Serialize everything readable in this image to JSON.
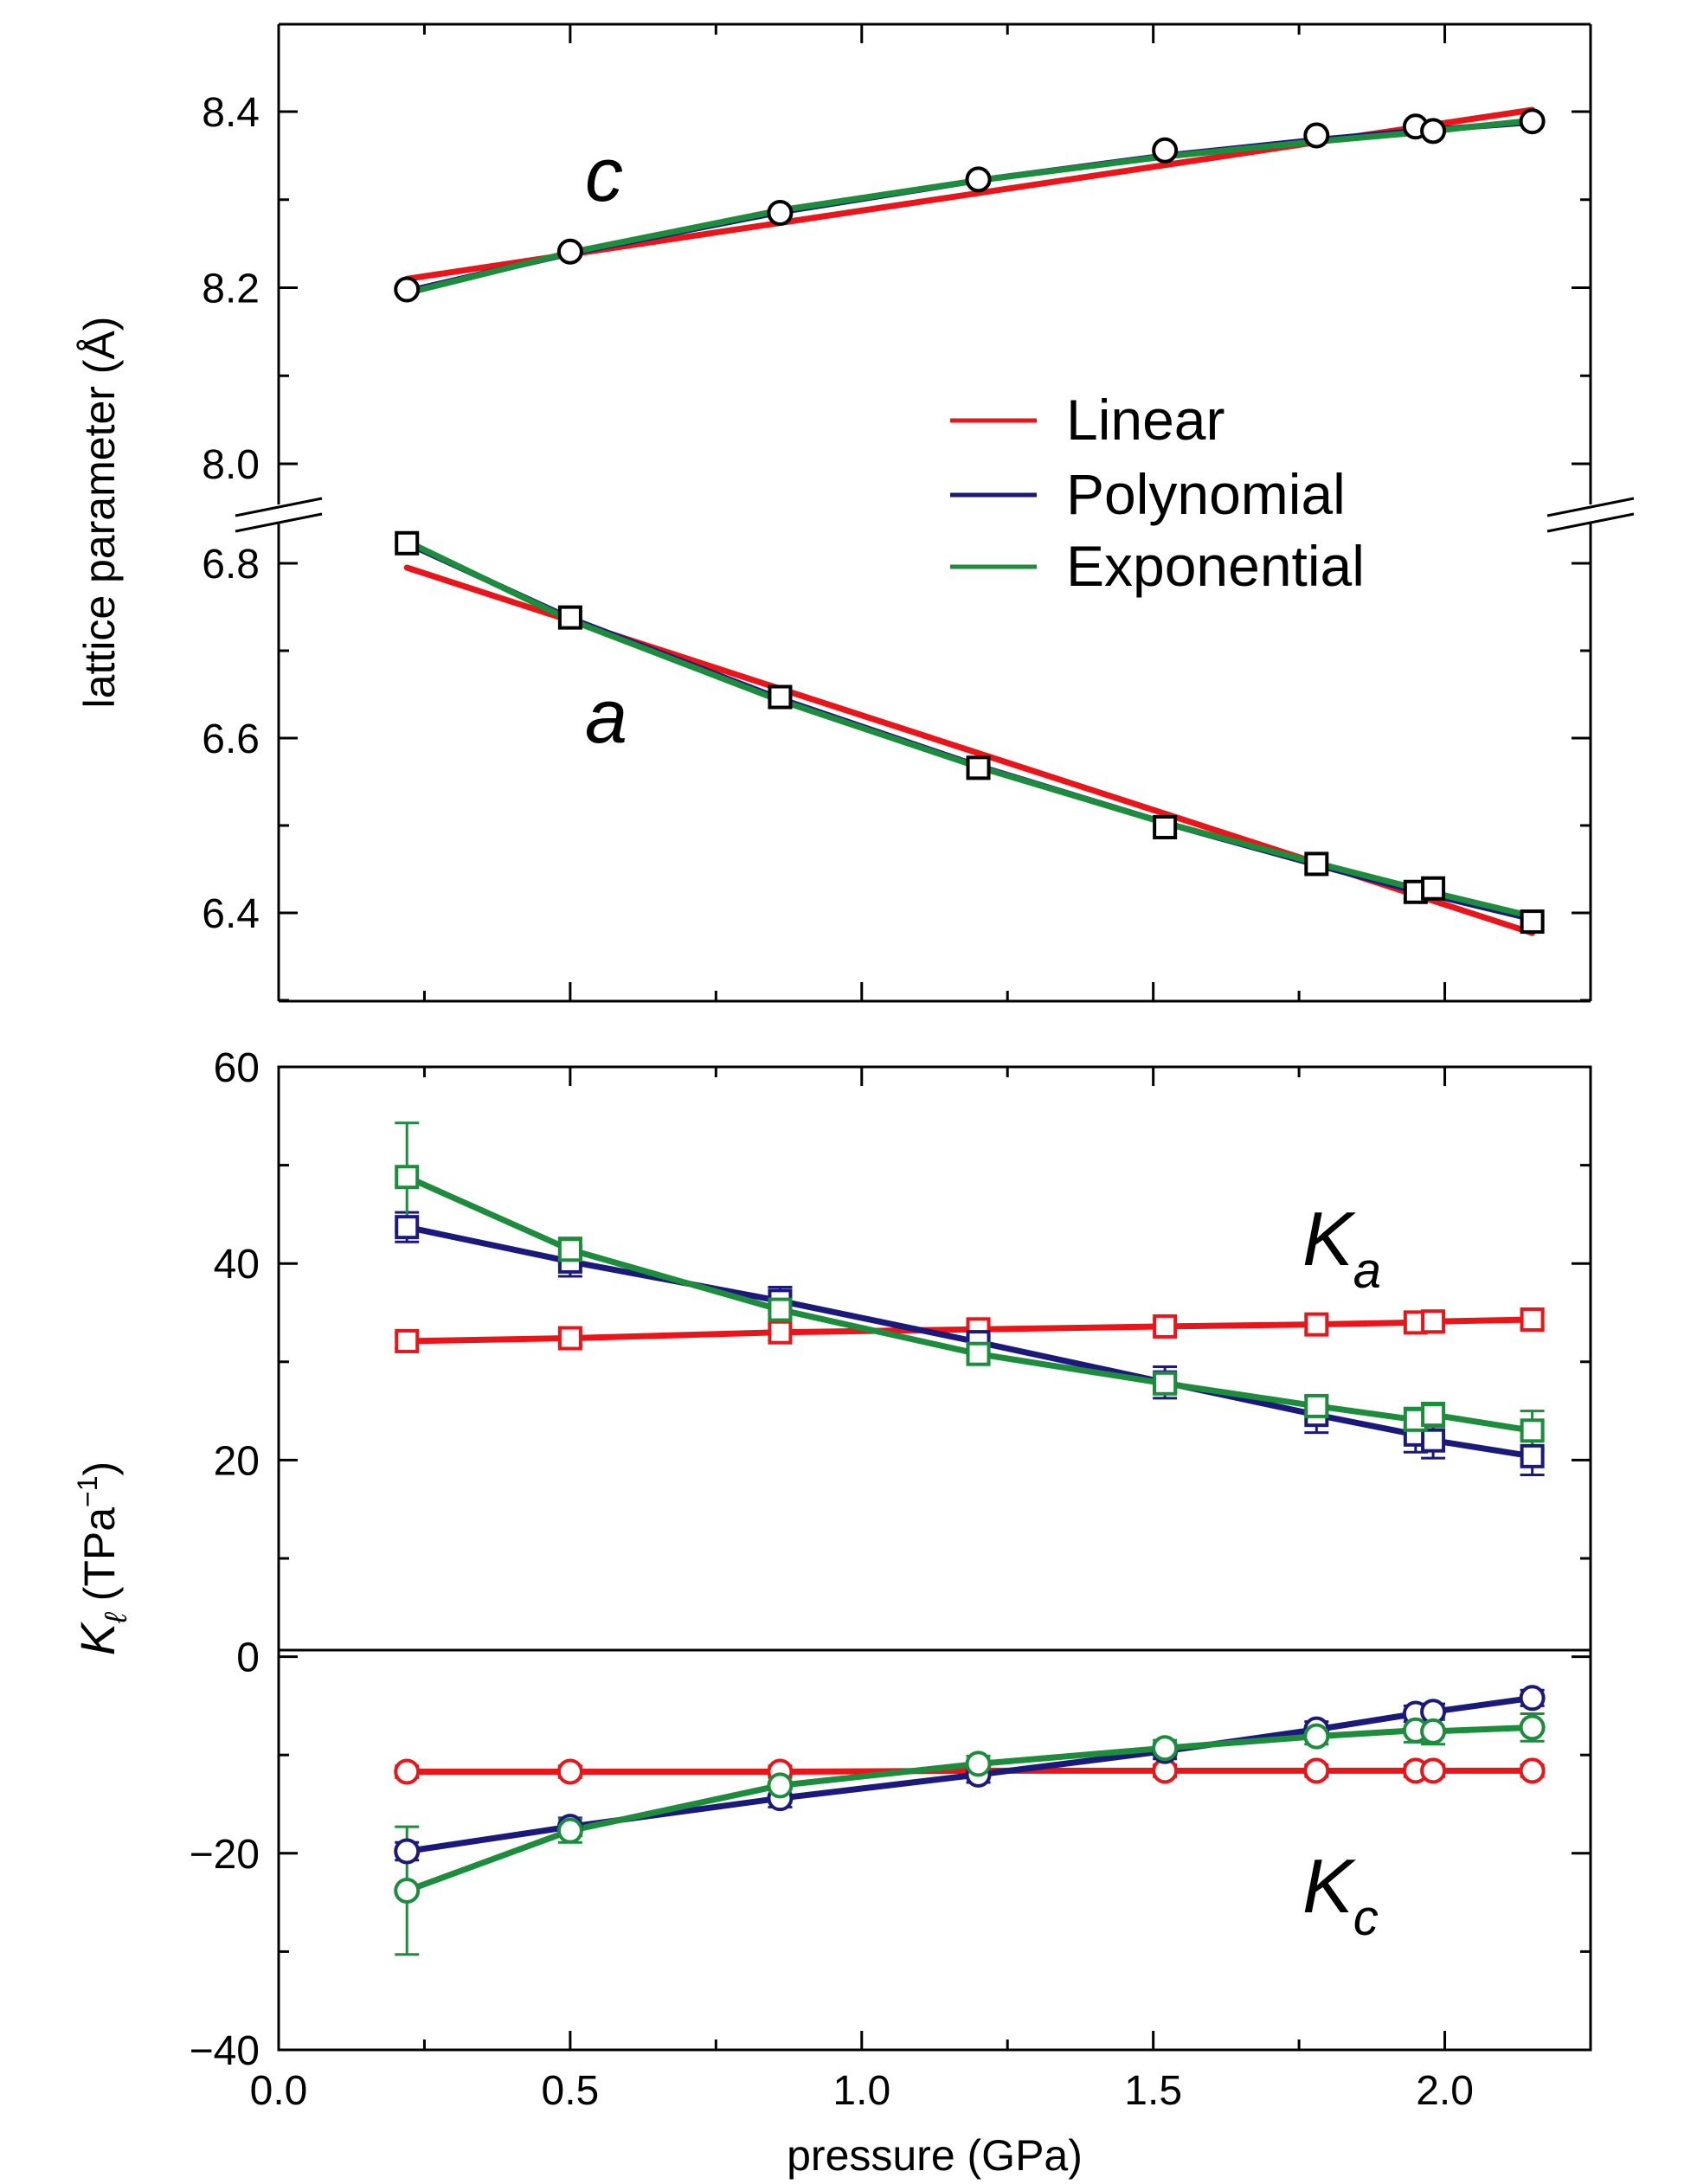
{
  "colors": {
    "linear": "#e8161b",
    "polynomial": "#1b1a7a",
    "exponential": "#1d8c3c",
    "frame": "#000000"
  },
  "chart_data": [
    {
      "type": "line",
      "panel": "top",
      "xlabel": "",
      "ylabel": "lattice parameter (Å)",
      "xlim": [
        0.0,
        2.25
      ],
      "ylim_upper_segment": [
        8.0,
        8.5
      ],
      "ylim_lower_segment": [
        6.3,
        6.82
      ],
      "axis_break": "between 6.82 and 8.0",
      "yticks_upper": [
        "8.0",
        "8.2",
        "8.4"
      ],
      "yticks_lower": [
        "6.4",
        "6.6",
        "6.8"
      ],
      "pressure": [
        0.22,
        0.5,
        0.86,
        1.2,
        1.52,
        1.78,
        1.95,
        1.98,
        2.15
      ],
      "series": [
        {
          "name": "c",
          "marker": "circle",
          "values": [
            8.198,
            8.241,
            8.285,
            8.323,
            8.356,
            8.373,
            8.383,
            8.378,
            8.389
          ]
        },
        {
          "name": "a",
          "marker": "square",
          "values": [
            6.823,
            6.738,
            6.647,
            6.566,
            6.498,
            6.456,
            6.424,
            6.428,
            6.39
          ]
        }
      ],
      "fits": {
        "c": {
          "Linear": [
            [
              0.22,
              8.21
            ],
            [
              2.15,
              8.402
            ]
          ],
          "Polynomial": [
            [
              0.22,
              8.196
            ],
            [
              0.5,
              8.239
            ],
            [
              0.86,
              8.286
            ],
            [
              1.2,
              8.322
            ],
            [
              1.52,
              8.35
            ],
            [
              1.78,
              8.368
            ],
            [
              1.95,
              8.378
            ],
            [
              2.15,
              8.388
            ]
          ],
          "Exponential": [
            [
              0.22,
              8.194
            ],
            [
              0.5,
              8.24
            ],
            [
              0.86,
              8.288
            ],
            [
              1.2,
              8.322
            ],
            [
              1.52,
              8.349
            ],
            [
              1.78,
              8.366
            ],
            [
              1.95,
              8.376
            ],
            [
              2.15,
              8.39
            ]
          ]
        },
        "a": {
          "Linear": [
            [
              0.22,
              6.795
            ],
            [
              2.15,
              6.377
            ]
          ],
          "Polynomial": [
            [
              0.22,
              6.823
            ],
            [
              0.5,
              6.737
            ],
            [
              0.86,
              6.645
            ],
            [
              1.2,
              6.568
            ],
            [
              1.52,
              6.503
            ],
            [
              1.78,
              6.455
            ],
            [
              1.95,
              6.425
            ],
            [
              2.15,
              6.393
            ]
          ],
          "Exponential": [
            [
              0.22,
              6.825
            ],
            [
              0.5,
              6.735
            ],
            [
              0.86,
              6.643
            ],
            [
              1.2,
              6.567
            ],
            [
              1.52,
              6.503
            ],
            [
              1.78,
              6.457
            ],
            [
              1.95,
              6.428
            ],
            [
              2.15,
              6.396
            ]
          ]
        }
      },
      "annotations": [
        {
          "text": "c"
        },
        {
          "text": "a"
        }
      ],
      "legend": {
        "placement": "center-right",
        "entries": [
          "Linear",
          "Polynomial",
          "Exponential"
        ]
      }
    },
    {
      "type": "line",
      "panel": "bottom",
      "xlabel": "pressure (GPa)",
      "ylabel_main": "K",
      "ylabel_sub": "ℓ",
      "ylabel_rest": " (TPa",
      "ylabel_sup": "−1",
      "ylabel_close": ")",
      "xlim": [
        0.0,
        2.25
      ],
      "ylim": [
        -40,
        60
      ],
      "xticks": [
        "0.0",
        "0.5",
        "1.0",
        "1.5",
        "2.0"
      ],
      "yticks": [
        "−40",
        "−20",
        "0",
        "20",
        "40",
        "60"
      ],
      "zero_line": true,
      "pressure": [
        0.22,
        0.5,
        0.86,
        1.2,
        1.52,
        1.78,
        1.95,
        1.98,
        2.15
      ],
      "series": [
        {
          "name": "Linear",
          "quantity": "Ka",
          "marker": "square",
          "values": [
            32.1,
            32.4,
            33.0,
            33.3,
            33.6,
            33.8,
            34.0,
            34.1,
            34.3
          ],
          "errors": [
            0.8,
            0.8,
            0.8,
            0.8,
            0.8,
            0.8,
            0.8,
            0.8,
            0.8
          ]
        },
        {
          "name": "Polynomial",
          "quantity": "Ka",
          "marker": "square",
          "values": [
            43.7,
            40.2,
            36.2,
            32.0,
            27.9,
            24.6,
            22.6,
            22.0,
            20.4
          ],
          "errors": [
            1.5,
            1.5,
            1.4,
            1.4,
            1.6,
            1.8,
            1.8,
            1.8,
            1.9
          ]
        },
        {
          "name": "Exponential",
          "quantity": "Ka",
          "marker": "square",
          "values": [
            48.8,
            41.4,
            35.3,
            30.8,
            27.8,
            25.5,
            24.1,
            24.6,
            23.0
          ],
          "errors": [
            5.5,
            1.2,
            1.0,
            0.9,
            0.9,
            1.0,
            1.2,
            1.2,
            2.0
          ]
        },
        {
          "name": "Linear",
          "quantity": "Kc",
          "marker": "circle",
          "values": [
            -11.7,
            -11.7,
            -11.7,
            -11.6,
            -11.6,
            -11.6,
            -11.6,
            -11.6,
            -11.6
          ],
          "errors": [
            0.6,
            0.6,
            0.6,
            0.6,
            0.6,
            0.6,
            0.6,
            0.6,
            0.6
          ]
        },
        {
          "name": "Polynomial",
          "quantity": "Kc",
          "marker": "circle",
          "values": [
            -19.8,
            -17.3,
            -14.4,
            -12.0,
            -9.6,
            -7.4,
            -5.8,
            -5.6,
            -4.2
          ],
          "errors": [
            0.9,
            0.9,
            0.9,
            0.8,
            0.8,
            0.8,
            0.8,
            0.8,
            0.8
          ]
        },
        {
          "name": "Exponential",
          "quantity": "Kc",
          "marker": "circle",
          "values": [
            -23.8,
            -17.7,
            -13.1,
            -10.9,
            -9.3,
            -8.1,
            -7.5,
            -7.6,
            -7.2
          ],
          "errors": [
            6.5,
            1.2,
            0.9,
            0.8,
            0.8,
            0.8,
            1.2,
            1.3,
            1.4
          ]
        }
      ],
      "annotations": [
        {
          "main": "K",
          "sub": "a"
        },
        {
          "main": "K",
          "sub": "c"
        }
      ]
    }
  ]
}
